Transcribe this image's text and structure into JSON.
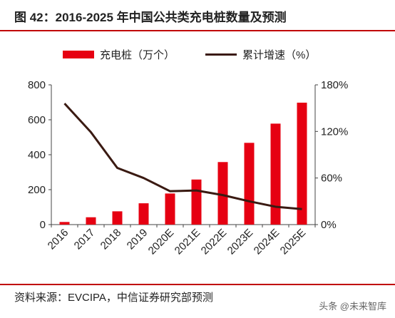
{
  "figure": {
    "title": "图 42：2016-2025 年中国公共类充电桩数量及预测",
    "source": "资料来源：EVCIPA，中信证券研究部预测",
    "watermark": "头条 @未来智库"
  },
  "colors": {
    "accent": "#c00000",
    "bar": "#e60012",
    "line": "#3a1a12"
  },
  "chart_data": {
    "type": "bar+line",
    "categories": [
      "2016",
      "2017",
      "2018",
      "2019",
      "2020E",
      "2021E",
      "2022E",
      "2023E",
      "2024E",
      "2025E"
    ],
    "series": [
      {
        "name": "充电桩（万个）",
        "type": "bar",
        "axis": "left",
        "values": [
          15,
          42,
          76,
          122,
          178,
          258,
          358,
          468,
          578,
          698
        ]
      },
      {
        "name": "累计增速（%）",
        "type": "line",
        "axis": "right",
        "values": [
          156,
          119,
          73,
          60,
          43,
          44,
          38,
          30,
          23,
          20
        ]
      }
    ],
    "y_left": {
      "min": 0,
      "max": 800,
      "ticks": [
        "0",
        "200",
        "400",
        "600",
        "800"
      ]
    },
    "y_right": {
      "min": 0,
      "max": 180,
      "ticks": [
        "0%",
        "60%",
        "120%",
        "180%"
      ]
    },
    "legend_position": "top",
    "grid": false
  }
}
